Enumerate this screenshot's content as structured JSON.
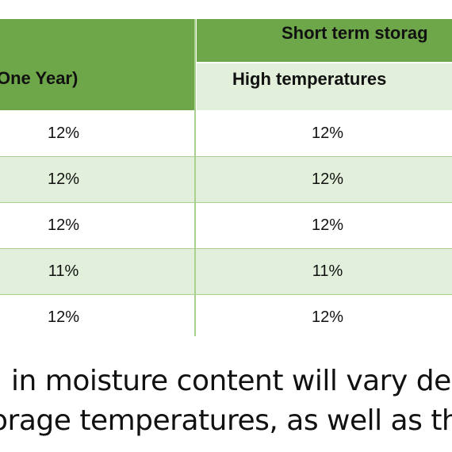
{
  "table": {
    "col1_header": "One Year)",
    "group_header": "Short term storag",
    "sub_header": "High temperatures",
    "rows": [
      {
        "c1": "12%",
        "c2": "12%"
      },
      {
        "c1": "12%",
        "c2": "12%"
      },
      {
        "c1": "12%",
        "c2": "12%"
      },
      {
        "c1": "11%",
        "c2": "11%"
      },
      {
        "c1": "12%",
        "c2": "12%"
      }
    ]
  },
  "paragraph": {
    "line1": "in moisture content will vary dep",
    "line2": "orage temperatures, as well as th"
  },
  "colors": {
    "header_green": "#6ea74a",
    "light_green": "#e2efda",
    "border_green": "#a9d08e"
  }
}
